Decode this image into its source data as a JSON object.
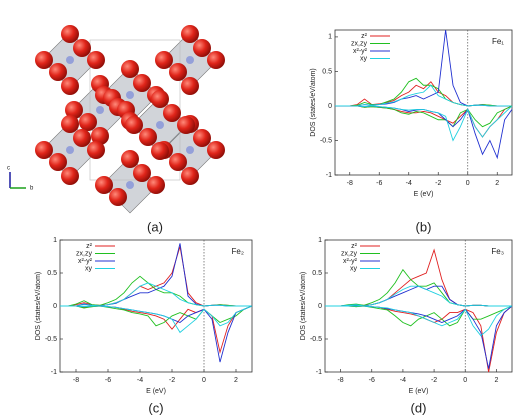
{
  "structure": {
    "panel_label": "(a)",
    "axis_labels": [
      "c",
      "b"
    ]
  },
  "chart_data": [
    {
      "type": "line",
      "title": "Fe₁",
      "panel_label": "(b)",
      "x_label": "E (eV)",
      "y_label": "DOS (states/eV/atom)",
      "x": [
        -9,
        -8.5,
        -8,
        -7.5,
        -7,
        -6.5,
        -6,
        -5.5,
        -5,
        -4.5,
        -4,
        -3.5,
        -3,
        -2.5,
        -2,
        -1.5,
        -1,
        -0.5,
        0,
        0.5,
        1,
        1.5,
        2,
        2.5,
        3
      ],
      "xlim": [
        -9,
        3
      ],
      "xticks": [
        -8,
        -6,
        -4,
        -2,
        0,
        2
      ],
      "ylim": [
        -1,
        1.1
      ],
      "yticks": [
        -1,
        -0.5,
        0,
        0.5,
        1
      ],
      "vline": 0,
      "legend": "upper left",
      "series": [
        {
          "name": "z²",
          "color": "#e02020",
          "values": [
            0,
            0,
            0,
            0.02,
            0.1,
            0.02,
            0.03,
            0.05,
            0.08,
            0.15,
            0.2,
            0.3,
            0.25,
            0.35,
            0.2,
            0.15,
            0.05,
            0.02,
            0,
            0.01,
            0.02,
            0.01,
            0,
            0,
            0
          ]
        },
        {
          "name": "zx,zy",
          "color": "#20c020",
          "values": [
            0,
            0,
            0,
            0.01,
            0.05,
            0.02,
            0.02,
            0.06,
            0.1,
            0.2,
            0.35,
            0.4,
            0.3,
            0.3,
            0.25,
            0.1,
            0.05,
            0.02,
            0,
            0.01,
            0.02,
            0.01,
            0,
            0,
            0
          ]
        },
        {
          "name": "x²-y²",
          "color": "#2030d0",
          "values": [
            0,
            0,
            0,
            0,
            0.02,
            0.01,
            0.02,
            0.03,
            0.05,
            0.1,
            0.12,
            0.15,
            0.1,
            0.15,
            0.2,
            1.1,
            0.3,
            0.05,
            0,
            0.01,
            0.01,
            0,
            0,
            0,
            0
          ]
        },
        {
          "name": "xy",
          "color": "#20d0e0",
          "values": [
            0,
            0,
            0,
            0,
            0.02,
            0.01,
            0.02,
            0.04,
            0.06,
            0.1,
            0.15,
            0.18,
            0.2,
            0.3,
            0.15,
            0.1,
            0.05,
            0.02,
            0,
            0.01,
            0.01,
            0,
            0,
            0,
            0
          ]
        },
        {
          "color": "#e02020",
          "values": [
            0,
            0,
            0,
            0,
            -0.02,
            -0.01,
            -0.02,
            -0.03,
            -0.05,
            -0.08,
            -0.1,
            -0.1,
            -0.08,
            -0.1,
            -0.15,
            -0.2,
            -0.25,
            -0.15,
            -0.05,
            -0.3,
            -0.45,
            -0.3,
            -0.2,
            -0.05,
            0
          ]
        },
        {
          "color": "#20c020",
          "values": [
            0,
            0,
            0,
            0,
            -0.02,
            -0.01,
            -0.02,
            -0.03,
            -0.05,
            -0.1,
            -0.12,
            -0.08,
            -0.1,
            -0.15,
            -0.2,
            -0.2,
            -0.3,
            -0.1,
            -0.05,
            -0.2,
            -0.3,
            -0.25,
            -0.1,
            -0.05,
            0
          ]
        },
        {
          "color": "#2030d0",
          "values": [
            0,
            0,
            0,
            0,
            -0.01,
            0,
            -0.01,
            -0.02,
            -0.03,
            -0.05,
            -0.08,
            -0.06,
            -0.05,
            -0.08,
            -0.1,
            -0.2,
            -0.3,
            -0.2,
            -0.05,
            -0.4,
            -0.7,
            -0.5,
            -0.75,
            -0.2,
            -0.05
          ]
        },
        {
          "color": "#20d0e0",
          "values": [
            0,
            0,
            0,
            0,
            -0.01,
            0,
            -0.01,
            -0.02,
            -0.03,
            -0.05,
            -0.06,
            -0.05,
            -0.05,
            -0.08,
            -0.1,
            -0.15,
            -0.5,
            -0.3,
            -0.05,
            -0.3,
            -0.45,
            -0.3,
            -0.2,
            -0.1,
            0
          ]
        }
      ]
    },
    {
      "type": "line",
      "title": "Fe₂",
      "panel_label": "(c)",
      "x_label": "E (eV)",
      "y_label": "DOS (states/eV/atom)",
      "x": [
        -9,
        -8.5,
        -8,
        -7.5,
        -7,
        -6.5,
        -6,
        -5.5,
        -5,
        -4.5,
        -4,
        -3.5,
        -3,
        -2.5,
        -2,
        -1.5,
        -1,
        -0.5,
        0,
        0.5,
        1,
        1.5,
        2,
        2.5,
        3
      ],
      "xlim": [
        -9,
        3
      ],
      "xticks": [
        -8,
        -6,
        -4,
        -2,
        0,
        2
      ],
      "ylim": [
        -1,
        1
      ],
      "yticks": [
        -1,
        -0.5,
        0,
        0.5,
        1
      ],
      "vline": 0,
      "legend": "upper left",
      "series": [
        {
          "name": "z²",
          "color": "#e02020",
          "values": [
            0,
            0,
            0.02,
            0.05,
            0.02,
            0.01,
            0.02,
            0.05,
            0.1,
            0.2,
            0.3,
            0.25,
            0.3,
            0.35,
            0.5,
            0.9,
            0.2,
            0.05,
            0,
            0.01,
            0.02,
            0.01,
            0,
            0,
            0
          ]
        },
        {
          "name": "zx,zy",
          "color": "#20c020",
          "values": [
            0,
            0,
            0.03,
            0.08,
            0.02,
            0.01,
            0.05,
            0.1,
            0.2,
            0.35,
            0.45,
            0.35,
            0.25,
            0.2,
            0.2,
            0.15,
            0.05,
            0.02,
            0,
            0.01,
            0.02,
            0.01,
            0,
            0,
            0
          ]
        },
        {
          "name": "x²-y²",
          "color": "#2030d0",
          "values": [
            0,
            0,
            0,
            0.03,
            0.01,
            0,
            0.02,
            0.04,
            0.1,
            0.15,
            0.2,
            0.2,
            0.25,
            0.3,
            0.45,
            0.95,
            0.15,
            0.03,
            0,
            0.01,
            0.01,
            0,
            0,
            0,
            0
          ]
        },
        {
          "name": "xy",
          "color": "#20d0e0",
          "values": [
            0,
            0,
            0,
            0.02,
            0.01,
            0,
            0.02,
            0.05,
            0.1,
            0.2,
            0.3,
            0.35,
            0.3,
            0.25,
            0.2,
            0.1,
            0.05,
            0.02,
            0,
            0.01,
            0.01,
            0,
            0,
            0,
            0
          ]
        },
        {
          "color": "#e02020",
          "values": [
            0,
            0,
            0,
            -0.02,
            -0.01,
            0,
            -0.01,
            -0.02,
            -0.05,
            -0.08,
            -0.1,
            -0.12,
            -0.15,
            -0.2,
            -0.35,
            -0.2,
            -0.05,
            -0.1,
            -0.05,
            -0.15,
            -0.7,
            -0.3,
            -0.1,
            -0.05,
            0
          ]
        },
        {
          "color": "#20c020",
          "values": [
            0,
            0,
            0,
            -0.03,
            -0.01,
            0,
            -0.02,
            -0.04,
            -0.06,
            -0.1,
            -0.12,
            -0.15,
            -0.3,
            -0.25,
            -0.15,
            -0.1,
            -0.15,
            -0.2,
            -0.05,
            -0.15,
            -0.25,
            -0.2,
            -0.15,
            -0.05,
            0
          ]
        },
        {
          "color": "#2030d0",
          "values": [
            0,
            0,
            0,
            -0.01,
            0,
            0,
            -0.01,
            -0.02,
            -0.04,
            -0.06,
            -0.08,
            -0.1,
            -0.12,
            -0.15,
            -0.2,
            -0.25,
            -0.15,
            -0.1,
            -0.05,
            -0.2,
            -0.85,
            -0.4,
            -0.1,
            -0.05,
            0
          ]
        },
        {
          "color": "#20d0e0",
          "values": [
            0,
            0,
            0,
            -0.01,
            0,
            0,
            -0.01,
            -0.02,
            -0.04,
            -0.06,
            -0.08,
            -0.1,
            -0.12,
            -0.15,
            -0.2,
            -0.4,
            -0.3,
            -0.2,
            -0.05,
            -0.15,
            -0.3,
            -0.25,
            -0.1,
            -0.05,
            0
          ]
        }
      ]
    },
    {
      "type": "line",
      "title": "Fe₃",
      "panel_label": "(d)",
      "x_label": "E (eV)",
      "y_label": "DOS (states/eV/atom)",
      "x": [
        -9,
        -8.5,
        -8,
        -7.5,
        -7,
        -6.5,
        -6,
        -5.5,
        -5,
        -4.5,
        -4,
        -3.5,
        -3,
        -2.5,
        -2,
        -1.5,
        -1,
        -0.5,
        0,
        0.5,
        1,
        1.5,
        2,
        2.5,
        3
      ],
      "xlim": [
        -9,
        3
      ],
      "xticks": [
        -8,
        -6,
        -4,
        -2,
        0,
        2
      ],
      "ylim": [
        -1,
        1
      ],
      "yticks": [
        -1,
        -0.5,
        0,
        0.5,
        1
      ],
      "vline": 0,
      "legend": "upper left",
      "series": [
        {
          "name": "z²",
          "color": "#e02020",
          "values": [
            0,
            0,
            0,
            0.01,
            0.02,
            0.01,
            0.02,
            0.05,
            0.1,
            0.2,
            0.3,
            0.4,
            0.45,
            0.5,
            0.85,
            0.4,
            0.1,
            0.02,
            0,
            0.01,
            0.01,
            0,
            0,
            0,
            0
          ]
        },
        {
          "name": "zx,zy",
          "color": "#20c020",
          "values": [
            0,
            0,
            0,
            0.02,
            0.03,
            0.01,
            0.05,
            0.1,
            0.2,
            0.35,
            0.55,
            0.4,
            0.3,
            0.3,
            0.35,
            0.2,
            0.05,
            0.02,
            0,
            0.01,
            0.01,
            0,
            0,
            0,
            0
          ]
        },
        {
          "name": "x²-y²",
          "color": "#2030d0",
          "values": [
            0,
            0,
            0,
            0.01,
            0.01,
            0,
            0.02,
            0.05,
            0.1,
            0.15,
            0.2,
            0.25,
            0.3,
            0.25,
            0.3,
            0.3,
            0.1,
            0.02,
            0,
            0.01,
            0.01,
            0,
            0,
            0,
            0
          ]
        },
        {
          "name": "xy",
          "color": "#20d0e0",
          "values": [
            0,
            0,
            0,
            0.01,
            0.02,
            0,
            0.02,
            0.05,
            0.1,
            0.18,
            0.25,
            0.3,
            0.3,
            0.25,
            0.2,
            0.15,
            0.05,
            0.02,
            0,
            0.01,
            0.01,
            0,
            0,
            0,
            0
          ]
        },
        {
          "color": "#e02020",
          "values": [
            0,
            0,
            0,
            0,
            -0.01,
            0,
            -0.01,
            -0.02,
            -0.05,
            -0.08,
            -0.1,
            -0.12,
            -0.15,
            -0.2,
            -0.25,
            -0.2,
            -0.1,
            -0.1,
            -0.05,
            -0.1,
            -0.3,
            -1,
            -0.4,
            -0.1,
            0
          ]
        },
        {
          "color": "#20c020",
          "values": [
            0,
            0,
            0,
            0,
            -0.01,
            0,
            -0.02,
            -0.04,
            -0.06,
            -0.15,
            -0.25,
            -0.3,
            -0.2,
            -0.15,
            -0.1,
            -0.2,
            -0.3,
            -0.25,
            -0.05,
            -0.2,
            -0.2,
            -0.15,
            -0.1,
            -0.05,
            0
          ]
        },
        {
          "color": "#2030d0",
          "values": [
            0,
            0,
            0,
            0,
            0,
            0,
            -0.01,
            -0.02,
            -0.04,
            -0.06,
            -0.08,
            -0.1,
            -0.12,
            -0.15,
            -0.2,
            -0.25,
            -0.2,
            -0.15,
            -0.05,
            -0.2,
            -0.4,
            -0.95,
            -0.3,
            -0.1,
            0
          ]
        },
        {
          "color": "#20d0e0",
          "values": [
            0,
            0,
            0,
            0,
            0,
            0,
            -0.01,
            -0.02,
            -0.03,
            -0.06,
            -0.08,
            -0.1,
            -0.15,
            -0.2,
            -0.25,
            -0.3,
            -0.25,
            -0.2,
            -0.05,
            -0.3,
            -0.45,
            -0.35,
            -0.15,
            -0.05,
            0
          ]
        }
      ]
    }
  ]
}
